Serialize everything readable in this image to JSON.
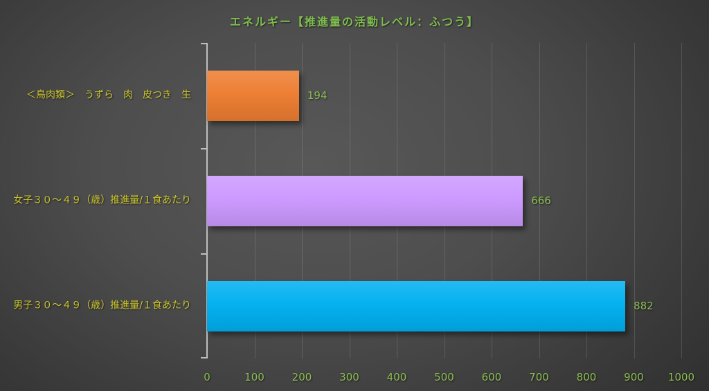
{
  "chart_data": {
    "type": "bar",
    "orientation": "horizontal",
    "title": "エネルギー【推進量の活動レベル：ふつう】",
    "categories": [
      "＜鳥肉類＞　うずら　肉　皮つき　生",
      "女子３０～４９（歳）推進量/１食あたり",
      "男子３０～４９（歳）推進量/１食あたり"
    ],
    "values": [
      194,
      666,
      882
    ],
    "data_labels": [
      "194",
      "666",
      "882"
    ],
    "bar_colors": [
      "#ED7D31",
      "#CC99FF",
      "#00B0F0"
    ],
    "xlabel": "",
    "ylabel": "",
    "xlim": [
      0,
      1000
    ],
    "x_ticks": [
      0,
      100,
      200,
      300,
      400,
      500,
      600,
      700,
      800,
      900,
      1000
    ],
    "grid": "vertical-gridlines-on",
    "legend": "none",
    "colors": {
      "title_text": "#7FBE4E",
      "category_label_text": "#CDC72E",
      "tick_label_text": "#8CBE53",
      "value_label_text": "#8CBE53",
      "axis_line": "#BFBFBF",
      "gridline": "rgba(225,225,225,0.16)"
    }
  }
}
